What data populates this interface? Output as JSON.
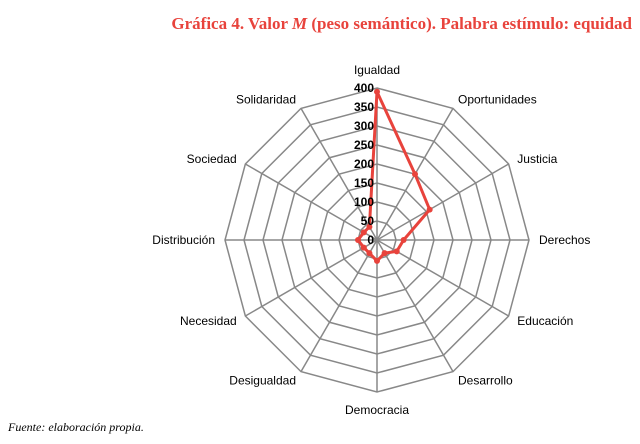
{
  "title": {
    "prefix": "Gráfica 4. Valor ",
    "math": "M",
    "suffix": " (peso semántico). Palabra estímulo: equidad"
  },
  "source": "Fuente: elaboración propia.",
  "colors": {
    "title": "#e8433c",
    "series": "#e8433c",
    "grid": "#888888"
  },
  "chart_data": {
    "type": "radar",
    "categories": [
      "Igualdad",
      "Oportunidades",
      "Justicia",
      "Derechos",
      "Educación",
      "Desarrollo",
      "Democracia",
      "Desigualdad",
      "Necesidad",
      "Distribución",
      "Sociedad",
      "Solidaridad"
    ],
    "series": [
      {
        "values": [
          390,
          200,
          160,
          70,
          60,
          40,
          55,
          40,
          40,
          50,
          40,
          40
        ]
      }
    ],
    "rticks": [
      "0",
      "50",
      "100",
      "150",
      "200",
      "250",
      "300",
      "350",
      "400"
    ],
    "rlim": [
      0,
      400
    ],
    "grid": true,
    "legend": false
  }
}
